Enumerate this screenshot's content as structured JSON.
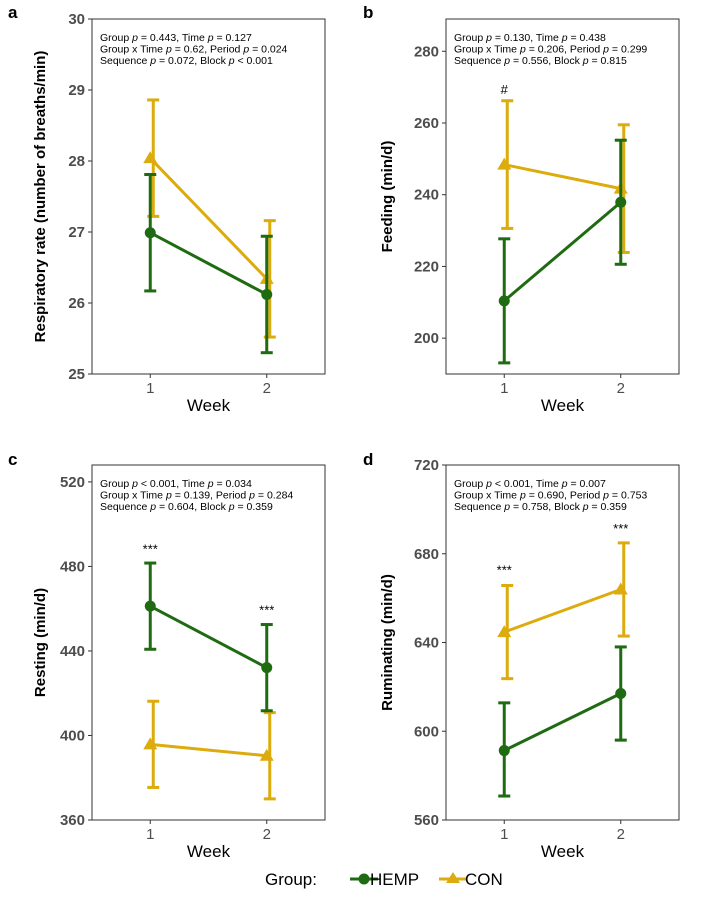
{
  "colors": {
    "HEMP": "#1e6b12",
    "CON": "#dcab0c",
    "axis": "#333333",
    "tick_text": "#4d4d4d"
  },
  "legend": {
    "title": "Group:",
    "entries": [
      {
        "key": "HEMP",
        "label": "HEMP",
        "marker": "circle"
      },
      {
        "key": "CON",
        "label": "CON",
        "marker": "triangle"
      }
    ]
  },
  "chart_data": [
    {
      "type": "line",
      "panel_label": "a",
      "xlabel": "Week",
      "ylabel": "Respiratory rate (number of breaths/min)",
      "categories": [
        "1",
        "2"
      ],
      "ylim": [
        25,
        30
      ],
      "yticks": [
        25,
        26,
        27,
        28,
        29,
        30
      ],
      "stats": [
        [
          {
            "t": "Group "
          },
          {
            "t": "p",
            "i": true
          },
          {
            "t": " = 0.443, Time "
          },
          {
            "t": "p",
            "i": true
          },
          {
            "t": " = 0.127"
          }
        ],
        [
          {
            "t": "Group x Time "
          },
          {
            "t": "p",
            "i": true
          },
          {
            "t": " = 0.62, Period "
          },
          {
            "t": "p",
            "i": true
          },
          {
            "t": " = 0.024"
          }
        ],
        [
          {
            "t": "Sequence "
          },
          {
            "t": "p",
            "i": true
          },
          {
            "t": " = 0.072, Block "
          },
          {
            "t": "p",
            "i": true
          },
          {
            "t": " < 0.001"
          }
        ]
      ],
      "series": [
        {
          "name": "HEMP",
          "values": [
            26.99,
            26.12
          ],
          "err_low": [
            26.17,
            25.3
          ],
          "err_high": [
            27.81,
            26.94
          ]
        },
        {
          "name": "CON",
          "values": [
            28.04,
            26.34
          ],
          "err_low": [
            27.22,
            25.52
          ],
          "err_high": [
            28.86,
            27.16
          ]
        }
      ],
      "annotations": []
    },
    {
      "type": "line",
      "panel_label": "b",
      "xlabel": "Week",
      "ylabel": "Feeding (min/d)",
      "categories": [
        "1",
        "2"
      ],
      "ylim": [
        190,
        289
      ],
      "yticks": [
        200,
        220,
        240,
        260,
        280
      ],
      "stats": [
        [
          {
            "t": "Group "
          },
          {
            "t": "p",
            "i": true
          },
          {
            "t": " = 0.130, Time "
          },
          {
            "t": "p",
            "i": true
          },
          {
            "t": " = 0.438"
          }
        ],
        [
          {
            "t": "Group x Time "
          },
          {
            "t": "p",
            "i": true
          },
          {
            "t": " = 0.206, Period "
          },
          {
            "t": "p",
            "i": true
          },
          {
            "t": " = 0.299"
          }
        ],
        [
          {
            "t": "Sequence "
          },
          {
            "t": "p",
            "i": true
          },
          {
            "t": " = 0.556, Block "
          },
          {
            "t": "p",
            "i": true
          },
          {
            "t": " = 0.815"
          }
        ]
      ],
      "series": [
        {
          "name": "HEMP",
          "values": [
            210.4,
            237.9
          ],
          "err_low": [
            193.1,
            220.6
          ],
          "err_high": [
            227.7,
            255.2
          ]
        },
        {
          "name": "CON",
          "values": [
            248.4,
            241.7
          ],
          "err_low": [
            230.6,
            223.9
          ],
          "err_high": [
            266.2,
            259.5
          ]
        }
      ],
      "annotations": [
        {
          "x": "1",
          "y": 269.5,
          "text": "#"
        }
      ]
    },
    {
      "type": "line",
      "panel_label": "c",
      "xlabel": "Week",
      "ylabel": "Resting (min/d)",
      "categories": [
        "1",
        "2"
      ],
      "ylim": [
        360,
        528
      ],
      "yticks": [
        360,
        400,
        440,
        480,
        520
      ],
      "stats": [
        [
          {
            "t": "Group "
          },
          {
            "t": "p",
            "i": true
          },
          {
            "t": " < 0.001, Time "
          },
          {
            "t": "p",
            "i": true
          },
          {
            "t": " = 0.034"
          }
        ],
        [
          {
            "t": "Group x Time "
          },
          {
            "t": "p",
            "i": true
          },
          {
            "t": " = 0.139, Period "
          },
          {
            "t": "p",
            "i": true
          },
          {
            "t": " = 0.284"
          }
        ],
        [
          {
            "t": "Sequence "
          },
          {
            "t": "p",
            "i": true
          },
          {
            "t": " = 0.604, Block "
          },
          {
            "t": "p",
            "i": true
          },
          {
            "t": " = 0.359"
          }
        ]
      ],
      "series": [
        {
          "name": "HEMP",
          "values": [
            461.2,
            432.1
          ],
          "err_low": [
            440.8,
            411.7
          ],
          "err_high": [
            481.6,
            452.5
          ]
        },
        {
          "name": "CON",
          "values": [
            395.8,
            390.4
          ],
          "err_low": [
            375.4,
            370.0
          ],
          "err_high": [
            416.2,
            410.8
          ]
        }
      ],
      "annotations": [
        {
          "x": "1",
          "y": 488.5,
          "text": "***"
        },
        {
          "x": "2",
          "y": 459.5,
          "text": "***"
        }
      ]
    },
    {
      "type": "line",
      "panel_label": "d",
      "xlabel": "Week",
      "ylabel": "Ruminating (min/d)",
      "categories": [
        "1",
        "2"
      ],
      "ylim": [
        560,
        720
      ],
      "yticks": [
        560,
        600,
        640,
        680,
        720
      ],
      "stats": [
        [
          {
            "t": "Group "
          },
          {
            "t": "p",
            "i": true
          },
          {
            "t": " < 0.001, Time "
          },
          {
            "t": "p",
            "i": true
          },
          {
            "t": " = 0.007"
          }
        ],
        [
          {
            "t": "Group x Time "
          },
          {
            "t": "p",
            "i": true
          },
          {
            "t": " = 0.690, Period "
          },
          {
            "t": "p",
            "i": true
          },
          {
            "t": " = 0.753"
          }
        ],
        [
          {
            "t": "Sequence "
          },
          {
            "t": "p",
            "i": true
          },
          {
            "t": " = 0.758, Block "
          },
          {
            "t": "p",
            "i": true
          },
          {
            "t": " = 0.359"
          }
        ]
      ],
      "series": [
        {
          "name": "HEMP",
          "values": [
            591.3,
            617.0
          ],
          "err_low": [
            570.8,
            596.0
          ],
          "err_high": [
            612.8,
            638.0
          ]
        },
        {
          "name": "CON",
          "values": [
            644.7,
            663.9
          ],
          "err_low": [
            623.7,
            642.9
          ],
          "err_high": [
            665.7,
            684.9
          ]
        }
      ],
      "annotations": [
        {
          "x": "1",
          "y": 672.8,
          "text": "***"
        },
        {
          "x": "2",
          "y": 691.5,
          "text": "***"
        }
      ]
    }
  ]
}
